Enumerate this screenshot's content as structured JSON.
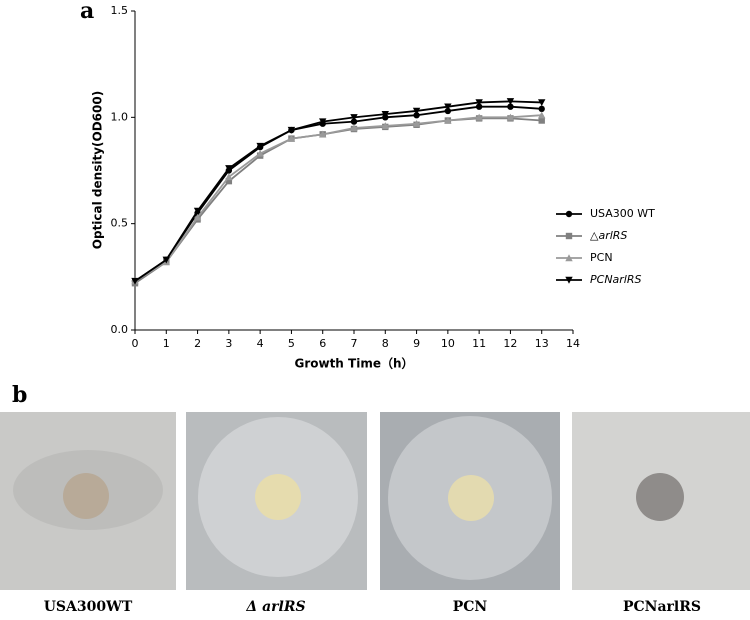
{
  "chart_data": {
    "type": "line",
    "x_label": "Growth Time（h）",
    "y_label": "Optical density(OD600)",
    "x": [
      0,
      1,
      2,
      3,
      4,
      5,
      6,
      7,
      8,
      9,
      10,
      11,
      12,
      13
    ],
    "series": [
      {
        "name": "USA300 WT",
        "color": "#000000",
        "marker": "circle",
        "values": [
          0.23,
          0.33,
          0.55,
          0.75,
          0.86,
          0.94,
          0.97,
          0.98,
          1.0,
          1.01,
          1.03,
          1.05,
          1.05,
          1.04
        ]
      },
      {
        "name": "△arlRS",
        "color": "#808080",
        "marker": "square",
        "values": [
          0.22,
          0.32,
          0.52,
          0.7,
          0.82,
          0.9,
          0.92,
          0.945,
          0.955,
          0.965,
          0.985,
          0.995,
          0.995,
          0.985
        ]
      },
      {
        "name": "PCN",
        "color": "#9a9a9a",
        "marker": "triangle",
        "values": [
          0.23,
          0.32,
          0.53,
          0.72,
          0.83,
          0.9,
          0.92,
          0.95,
          0.96,
          0.97,
          0.985,
          1.0,
          1.0,
          1.01
        ]
      },
      {
        "name": "PCNarlRS",
        "color": "#000000",
        "marker": "triangle-down",
        "values": [
          0.23,
          0.33,
          0.56,
          0.76,
          0.865,
          0.94,
          0.98,
          1.0,
          1.015,
          1.03,
          1.05,
          1.07,
          1.075,
          1.07
        ]
      }
    ],
    "xlim": [
      0,
      14
    ],
    "xticks": [
      0,
      1,
      2,
      3,
      4,
      5,
      6,
      7,
      8,
      9,
      10,
      11,
      12,
      13,
      14
    ],
    "ylim": [
      0,
      1.5
    ],
    "yticks": [
      {
        "value": 0,
        "label": "0.0"
      },
      0.5,
      {
        "value": 1,
        "label": "1.0"
      },
      1.5
    ],
    "legend": "right"
  },
  "panels": {
    "a": "a",
    "b": "b"
  },
  "photos": [
    {
      "caption": "USA300WT"
    },
    {
      "caption": "Δ arlRS"
    },
    {
      "caption": "PCN"
    },
    {
      "caption": "PCNarlRS"
    }
  ]
}
